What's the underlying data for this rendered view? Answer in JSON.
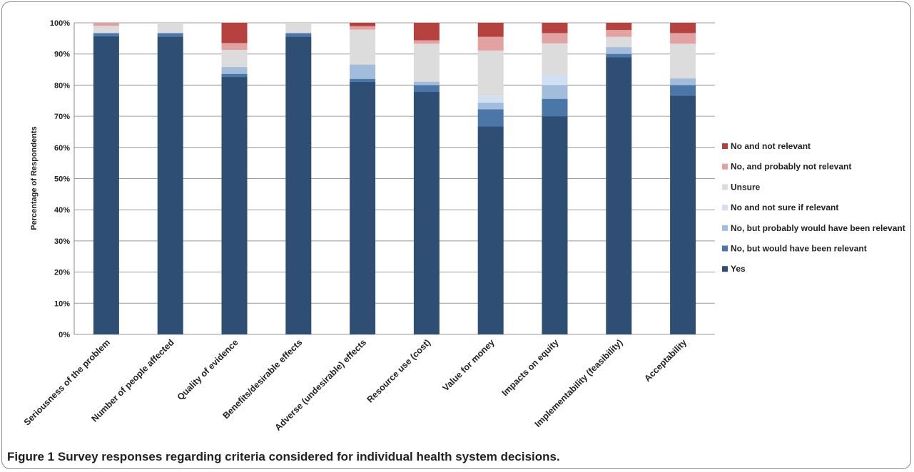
{
  "caption": {
    "label": "Figure 1",
    "text": "Survey responses regarding criteria considered for individual health system decisions."
  },
  "chart_data": {
    "type": "bar",
    "stacked": true,
    "percent_stacked": true,
    "ylabel": "Percentage of Respondents",
    "xlabel": "",
    "ylim": [
      0,
      100
    ],
    "yticks": [
      "0%",
      "10%",
      "20%",
      "30%",
      "40%",
      "50%",
      "60%",
      "70%",
      "80%",
      "90%",
      "100%"
    ],
    "grid": true,
    "legend_position": "right",
    "categories": [
      "Seriousness of the problem",
      "Number of people affected",
      "Quality of evidence",
      "Benefits/desirable effects",
      "Adverse (undesirable) effects",
      "Resource use (cost)",
      "Value for money",
      "Impacts on equity",
      "Implementability (feasibility)",
      "Acceptability"
    ],
    "series": [
      {
        "name": "Yes",
        "color": "#2e4f73",
        "values": [
          95.7,
          95.6,
          82.6,
          95.6,
          81.0,
          77.8,
          66.7,
          70.0,
          88.9,
          76.7
        ]
      },
      {
        "name": "No, but would have been relevant",
        "color": "#4a76a8",
        "values": [
          1.0,
          1.1,
          1.0,
          1.1,
          1.0,
          2.2,
          5.5,
          5.6,
          1.1,
          3.3
        ]
      },
      {
        "name": "No, but probably would have been relevant",
        "color": "#a2bcdc",
        "values": [
          0.0,
          0.0,
          2.2,
          0.0,
          4.6,
          1.1,
          2.2,
          4.4,
          2.2,
          2.2
        ]
      },
      {
        "name": "No and not sure if relevant",
        "color": "#d0e0f2",
        "values": [
          0.0,
          0.0,
          0.0,
          0.0,
          0.0,
          0.0,
          2.2,
          3.4,
          0.0,
          0.0
        ]
      },
      {
        "name": "Unsure",
        "color": "#dcdcdc",
        "values": [
          2.3,
          3.3,
          5.5,
          3.3,
          11.2,
          12.2,
          14.5,
          10.0,
          3.3,
          11.1
        ]
      },
      {
        "name": "No, and probably not relevant",
        "color": "#e3a2a2",
        "values": [
          1.0,
          0.0,
          2.2,
          0.0,
          1.1,
          1.1,
          4.4,
          3.3,
          2.2,
          3.4
        ]
      },
      {
        "name": "No and not relevant",
        "color": "#b5423f",
        "values": [
          0.0,
          0.0,
          6.5,
          0.0,
          1.1,
          5.6,
          4.5,
          3.3,
          2.3,
          3.3
        ]
      }
    ]
  }
}
